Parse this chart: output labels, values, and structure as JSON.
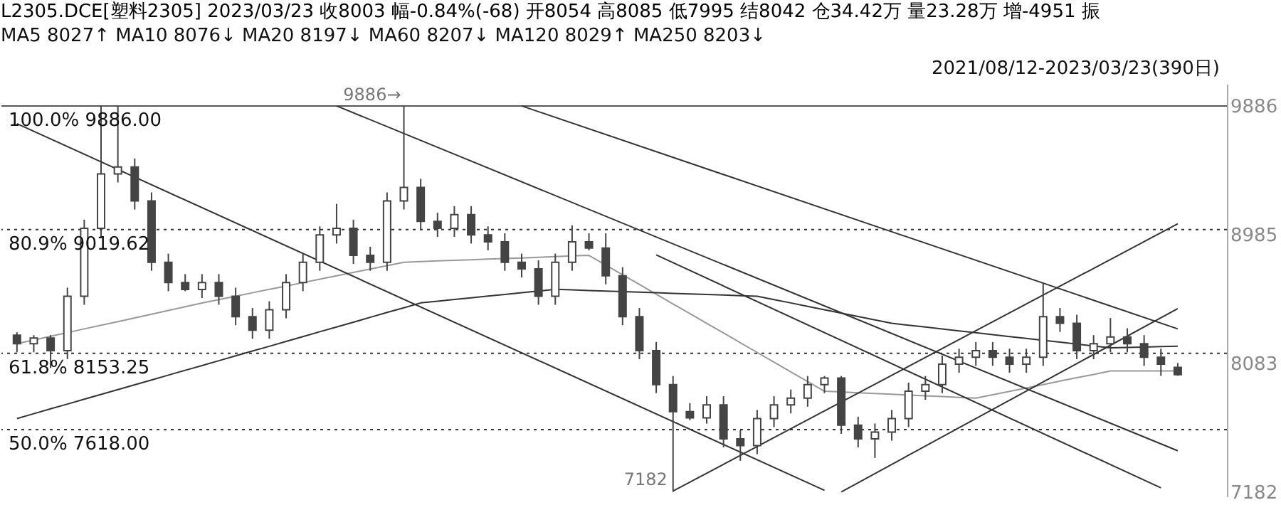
{
  "chart_data": {
    "type": "candlestick",
    "title": "L2305.DCE[塑料2305]   2023/03/23  收8003  幅-0.84%(-68)  开8054  高8085  低7995  结8042  仓34.42万  量23.28万  增-4951  振",
    "subtitle": "MA5 8027↑  MA10 8076↓  MA20 8197↓  MA60 8207↓  MA120 8029↑  MA250 8203↓",
    "color": "#444444",
    "categories": [
      null,
      null,
      null,
      null,
      null,
      null,
      null,
      null,
      null,
      null,
      null,
      null,
      null,
      null,
      null,
      null,
      null,
      null,
      null,
      null,
      null,
      null,
      null,
      null,
      null,
      null,
      null,
      null,
      null,
      null,
      null,
      null,
      null,
      null,
      null,
      null,
      null,
      null,
      null,
      null,
      null,
      null,
      null,
      null,
      null,
      null,
      null,
      null,
      null,
      null,
      null,
      null,
      null,
      null,
      null,
      null,
      null,
      null,
      null,
      null,
      null,
      null,
      null,
      null,
      null,
      null,
      null,
      null,
      null,
      null
    ],
    "ohlc": [
      [
        8280,
        8300,
        8160,
        8220
      ],
      [
        8220,
        8280,
        8160,
        8260
      ],
      [
        8260,
        8280,
        8050,
        8172
      ],
      [
        8172,
        8613,
        8112,
        8553
      ],
      [
        8553,
        9089,
        8493,
        9029
      ],
      [
        9029,
        9886,
        8969,
        9410
      ],
      [
        9410,
        9886,
        9350,
        9458
      ],
      [
        9458,
        9518,
        9160,
        9220
      ],
      [
        9220,
        9280,
        8731,
        8791
      ],
      [
        8791,
        8851,
        8588,
        8648
      ],
      [
        8648,
        8708,
        8588,
        8600
      ],
      [
        8600,
        8708,
        8540,
        8648
      ],
      [
        8648,
        8708,
        8493,
        8553
      ],
      [
        8553,
        8613,
        8350,
        8410
      ],
      [
        8410,
        8470,
        8255,
        8315
      ],
      [
        8315,
        8518,
        8255,
        8458
      ],
      [
        8458,
        8708,
        8398,
        8648
      ],
      [
        8648,
        8851,
        8588,
        8791
      ],
      [
        8791,
        9042,
        8731,
        8982
      ],
      [
        8982,
        9200,
        8922,
        9029
      ],
      [
        9029,
        9089,
        8779,
        8839
      ],
      [
        8839,
        8899,
        8731,
        8791
      ],
      [
        8791,
        9280,
        8731,
        9220
      ],
      [
        9220,
        9886,
        9160,
        9315
      ],
      [
        9315,
        9375,
        9017,
        9077
      ],
      [
        9077,
        9137,
        8969,
        9029
      ],
      [
        9029,
        9184,
        8969,
        9124
      ],
      [
        9124,
        9184,
        8922,
        8982
      ],
      [
        8982,
        9042,
        8874,
        8934
      ],
      [
        8934,
        8994,
        8731,
        8791
      ],
      [
        8791,
        8851,
        8684,
        8744
      ],
      [
        8744,
        8804,
        8493,
        8553
      ],
      [
        8553,
        8851,
        8493,
        8791
      ],
      [
        8791,
        9050,
        8731,
        8934
      ],
      [
        8934,
        8994,
        8874,
        8890
      ],
      [
        8890,
        8994,
        8636,
        8696
      ],
      [
        8696,
        8756,
        8350,
        8410
      ],
      [
        8410,
        8470,
        8112,
        8172
      ],
      [
        8172,
        8232,
        7874,
        7934
      ],
      [
        7934,
        7994,
        7182,
        7744
      ],
      [
        7744,
        7804,
        7684,
        7700
      ],
      [
        7700,
        7852,
        7660,
        7792
      ],
      [
        7792,
        7852,
        7494,
        7554
      ],
      [
        7554,
        7614,
        7400,
        7506
      ],
      [
        7506,
        7756,
        7446,
        7696
      ],
      [
        7696,
        7852,
        7636,
        7792
      ],
      [
        7792,
        7899,
        7732,
        7839
      ],
      [
        7839,
        7994,
        7779,
        7934
      ],
      [
        7934,
        7994,
        7874,
        7980
      ],
      [
        7980,
        7994,
        7589,
        7649
      ],
      [
        7649,
        7709,
        7494,
        7554
      ],
      [
        7554,
        7661,
        7420,
        7601
      ],
      [
        7601,
        7756,
        7541,
        7696
      ],
      [
        7696,
        7947,
        7636,
        7887
      ],
      [
        7887,
        7994,
        7827,
        7934
      ],
      [
        7934,
        8137,
        7874,
        8077
      ],
      [
        8077,
        8185,
        8017,
        8125
      ],
      [
        8125,
        8232,
        8065,
        8172
      ],
      [
        8172,
        8232,
        8065,
        8125
      ],
      [
        8125,
        8185,
        8017,
        8077
      ],
      [
        8077,
        8185,
        8017,
        8125
      ],
      [
        8125,
        8650,
        8065,
        8410
      ],
      [
        8410,
        8470,
        8303,
        8363
      ],
      [
        8363,
        8423,
        8112,
        8172
      ],
      [
        8172,
        8280,
        8112,
        8220
      ],
      [
        8220,
        8400,
        8160,
        8268
      ],
      [
        8268,
        8328,
        8160,
        8220
      ],
      [
        8220,
        8280,
        8065,
        8125
      ],
      [
        8125,
        8185,
        7995,
        8077
      ],
      [
        8054,
        8085,
        7995,
        8003
      ]
    ],
    "series": [
      {
        "type": "line",
        "color": "#999999",
        "values": [
          8220,
          8246,
          8272,
          8298,
          8324,
          8350,
          8375,
          8401,
          8427,
          8453,
          8479,
          8505,
          8529,
          8553,
          8577,
          8601,
          8624,
          8648,
          8672,
          8696,
          8720,
          8743,
          8767,
          8791,
          8795,
          8800,
          8804,
          8808,
          8813,
          8817,
          8821,
          8826,
          8830,
          8835,
          8839,
          8771,
          8703,
          8635,
          8567,
          8499,
          8431,
          8363,
          8295,
          8227,
          8159,
          8091,
          8023,
          7955,
          7887,
          7882,
          7876,
          7871,
          7866,
          7860,
          7855,
          7850,
          7844,
          7839,
          7863,
          7886,
          7910,
          7934,
          7958,
          7982,
          8005,
          8029,
          8029,
          8029,
          8029,
          8029
        ]
      },
      {
        "type": "line",
        "color": "#333333",
        "values": [
          7696,
          7730,
          7764,
          7797,
          7831,
          7865,
          7899,
          7932,
          7966,
          8000,
          8034,
          8067,
          8101,
          8135,
          8169,
          8202,
          8236,
          8270,
          8304,
          8337,
          8371,
          8405,
          8439,
          8472,
          8506,
          8518,
          8530,
          8542,
          8554,
          8565,
          8577,
          8589,
          8601,
          8597,
          8593,
          8589,
          8585,
          8581,
          8577,
          8573,
          8569,
          8565,
          8561,
          8557,
          8553,
          8529,
          8506,
          8482,
          8458,
          8434,
          8411,
          8387,
          8363,
          8350,
          8337,
          8323,
          8310,
          8297,
          8284,
          8270,
          8257,
          8244,
          8231,
          8218,
          8204,
          8191,
          8194,
          8197,
          8200,
          8203
        ]
      },
      {
        "type": "line",
        "color": "#333333",
        "values": [
          9762,
          null,
          null,
          null,
          null,
          null,
          null,
          null,
          null,
          null,
          null,
          null,
          null,
          null,
          null,
          null,
          null,
          null,
          null,
          null,
          null,
          null,
          null,
          null,
          null,
          null,
          null,
          null,
          null,
          null,
          null,
          null,
          null,
          null,
          null,
          null,
          null,
          null,
          null,
          null,
          null,
          null,
          null,
          null,
          null,
          null,
          null,
          null,
          7193,
          null,
          null,
          null,
          null,
          null,
          null,
          null,
          null,
          null,
          null,
          null,
          null,
          null,
          null,
          null,
          null,
          null,
          null,
          null,
          null,
          null
        ]
      },
      {
        "type": "line",
        "color": "#333333",
        "values": [
          null,
          null,
          null,
          null,
          null,
          null,
          null,
          null,
          null,
          null,
          null,
          null,
          null,
          null,
          null,
          null,
          null,
          null,
          null,
          9886,
          null,
          null,
          null,
          null,
          null,
          null,
          null,
          null,
          null,
          null,
          null,
          null,
          null,
          null,
          null,
          null,
          null,
          null,
          null,
          null,
          null,
          null,
          null,
          null,
          null,
          null,
          null,
          null,
          null,
          null,
          null,
          null,
          null,
          null,
          null,
          null,
          null,
          null,
          null,
          null,
          null,
          null,
          null,
          null,
          null,
          null,
          null,
          null,
          null,
          7470
        ]
      },
      {
        "type": "line",
        "color": "#333333",
        "values": [
          null,
          null,
          null,
          null,
          null,
          null,
          null,
          null,
          null,
          null,
          null,
          null,
          null,
          null,
          null,
          null,
          null,
          null,
          null,
          null,
          null,
          null,
          null,
          null,
          null,
          null,
          null,
          null,
          null,
          null,
          9886,
          null,
          null,
          null,
          null,
          null,
          null,
          null,
          null,
          null,
          null,
          null,
          null,
          null,
          null,
          null,
          null,
          null,
          null,
          null,
          null,
          null,
          null,
          null,
          null,
          null,
          null,
          null,
          null,
          null,
          null,
          null,
          null,
          null,
          null,
          null,
          null,
          null,
          null,
          8324
        ]
      },
      {
        "type": "line",
        "color": "#333333",
        "values": [
          null,
          null,
          null,
          null,
          null,
          null,
          null,
          null,
          null,
          null,
          null,
          null,
          null,
          null,
          null,
          null,
          null,
          null,
          null,
          null,
          null,
          null,
          null,
          null,
          null,
          null,
          null,
          null,
          null,
          null,
          null,
          null,
          null,
          null,
          null,
          null,
          null,
          null,
          null,
          7188,
          null,
          null,
          null,
          null,
          null,
          null,
          null,
          null,
          null,
          null,
          null,
          null,
          null,
          null,
          null,
          null,
          null,
          null,
          null,
          null,
          null,
          null,
          null,
          null,
          null,
          null,
          null,
          null,
          null,
          9060
        ]
      },
      {
        "type": "line",
        "color": "#333333",
        "values": [
          null,
          null,
          null,
          null,
          null,
          null,
          null,
          null,
          null,
          null,
          null,
          null,
          null,
          null,
          null,
          null,
          null,
          null,
          null,
          null,
          null,
          null,
          null,
          null,
          null,
          null,
          null,
          null,
          null,
          null,
          null,
          null,
          null,
          null,
          null,
          null,
          null,
          null,
          null,
          null,
          null,
          null,
          null,
          null,
          null,
          null,
          null,
          null,
          null,
          7182,
          null,
          null,
          null,
          null,
          null,
          null,
          null,
          null,
          null,
          null,
          null,
          null,
          null,
          null,
          null,
          null,
          null,
          null,
          null,
          8466
        ]
      },
      {
        "type": "line",
        "color": "#333333",
        "values": [
          null,
          null,
          null,
          null,
          null,
          null,
          null,
          null,
          null,
          null,
          null,
          null,
          null,
          null,
          null,
          null,
          null,
          null,
          null,
          null,
          null,
          null,
          null,
          null,
          null,
          null,
          null,
          null,
          null,
          null,
          null,
          null,
          null,
          null,
          null,
          null,
          null,
          null,
          8842,
          null,
          null,
          null,
          null,
          null,
          null,
          null,
          null,
          null,
          null,
          null,
          null,
          null,
          null,
          null,
          null,
          null,
          null,
          null,
          null,
          null,
          null,
          null,
          null,
          null,
          null,
          null,
          null,
          null,
          7210,
          null
        ]
      }
    ],
    "ref_lines": [
      {
        "axis": "y",
        "value": 9886,
        "label": "100.0%  9886.00",
        "line_style": "solid",
        "color": "#555555"
      },
      {
        "axis": "y",
        "value": 9019.62,
        "label": "80.9%  9019.62",
        "line_style": "dotted",
        "color": "#333333"
      },
      {
        "axis": "y",
        "value": 8153.25,
        "label": "61.8%  8153.25",
        "line_style": "dotted",
        "color": "#333333"
      },
      {
        "axis": "y",
        "value": 7618,
        "label": "50.0%  7618.00",
        "line_style": "dotted",
        "color": "#333333"
      }
    ],
    "annotations": [
      {
        "text": "9886→",
        "y": 9886
      },
      "2021/08/12-2023/03/23(390日)",
      "7182"
    ],
    "ylim": [
      7150,
      10040
    ],
    "yticks": [
      9886,
      8985,
      8083,
      7182
    ],
    "tick_labels": "y",
    "grid": false
  }
}
